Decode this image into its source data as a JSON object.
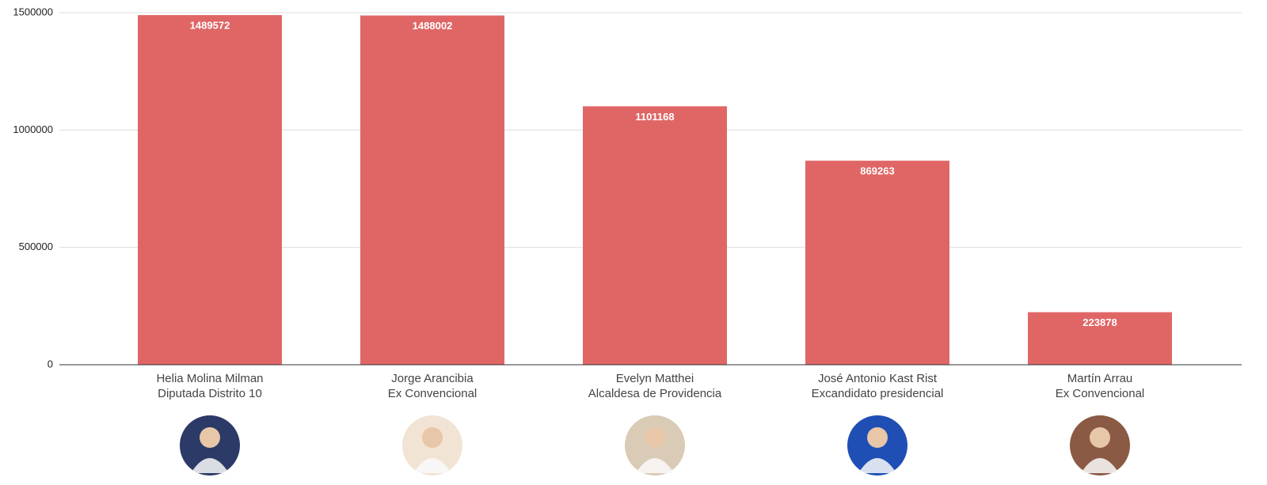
{
  "chart_data": {
    "type": "bar",
    "categories": [
      "Helia Molina Milman",
      "Jorge Arancibia",
      "Evelyn Matthei",
      "José Antonio Kast Rist",
      "Martín Arrau"
    ],
    "category_subtitles": [
      "Diputada Distrito 10",
      "Ex Convencional",
      "Alcaldesa de Providencia",
      "Excandidato presidencial",
      "Ex Convencional"
    ],
    "values": [
      1489572,
      1488002,
      1101168,
      869263,
      223878
    ],
    "color": "#e06666",
    "ylim": [
      0,
      1500000
    ],
    "yticks": [
      0,
      500000,
      1000000,
      1500000
    ],
    "grid": true
  }
}
